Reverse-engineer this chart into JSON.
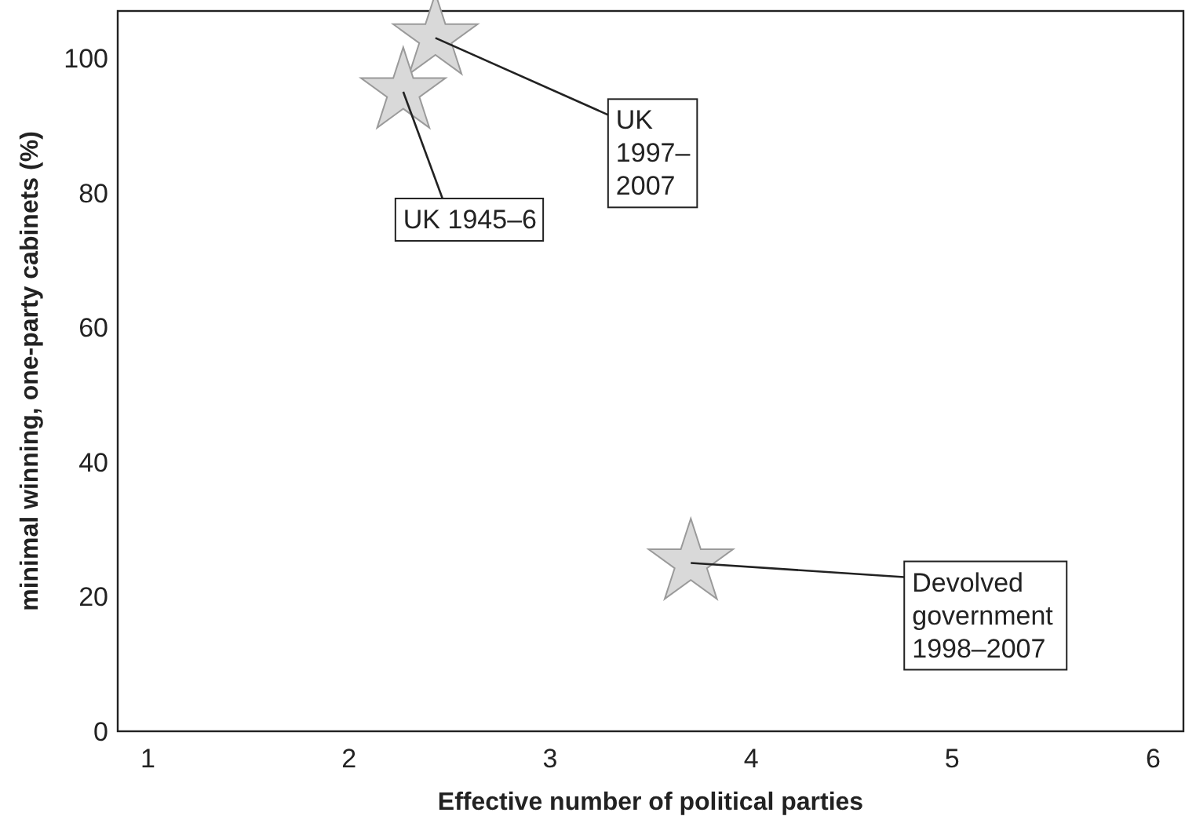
{
  "chart_data": {
    "type": "scatter",
    "xlabel": "Effective number of political parties",
    "ylabel": "minimal winning, one-party cabinets (%)",
    "x": [
      2.43,
      2.27,
      3.7
    ],
    "values": [
      103,
      95,
      25
    ],
    "color": "#d9d9d9",
    "marker": "star",
    "xlim": [
      0.85,
      6.15
    ],
    "xticks": [
      1,
      2,
      3,
      4,
      5,
      6
    ],
    "ylim": [
      0,
      107
    ],
    "yticks": [
      0,
      20,
      40,
      60,
      80,
      100
    ],
    "grid": false,
    "annotations": [
      {
        "text": "UK 1997–2007",
        "x": 2.43,
        "y": 103
      },
      {
        "text": "UK 1945–6",
        "x": 2.27,
        "y": 95
      },
      {
        "text": "Devolved government 1998–2007",
        "x": 3.7,
        "y": 25
      }
    ]
  }
}
